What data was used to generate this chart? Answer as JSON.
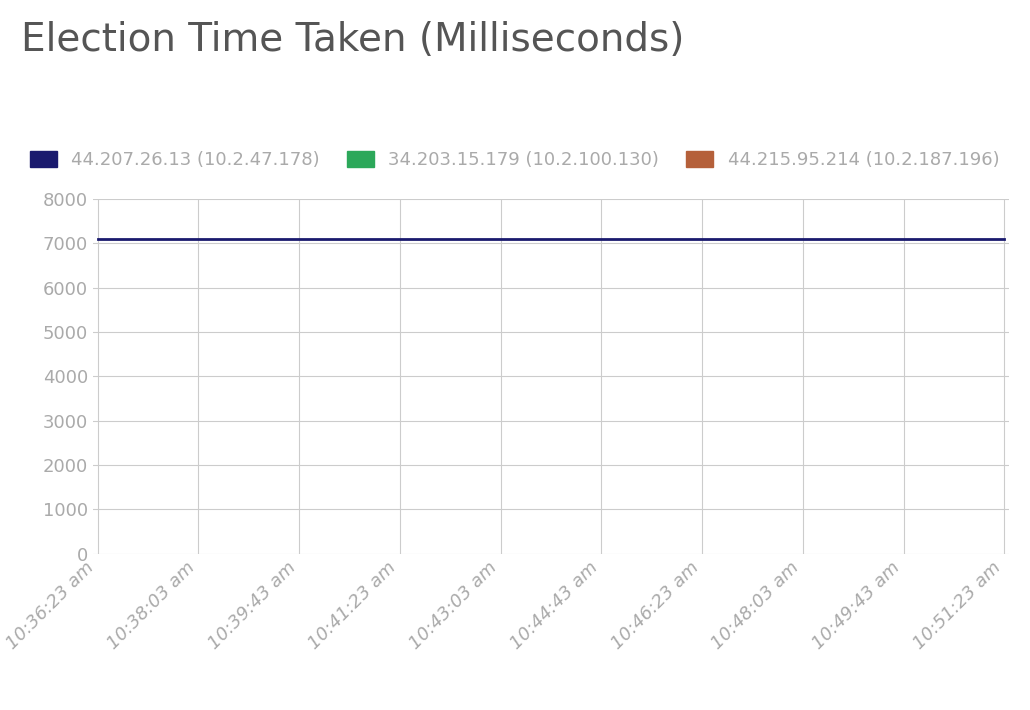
{
  "title": "Election Time Taken (Milliseconds)",
  "title_fontsize": 28,
  "title_color": "#555555",
  "background_color": "#ffffff",
  "plot_bg_color": "#ffffff",
  "grid_color": "#cccccc",
  "series": [
    {
      "label": "44.207.26.13 (10.2.47.178)",
      "color": "#1a1a6e",
      "value": 7100,
      "linewidth": 2.0
    },
    {
      "label": "34.203.15.179 (10.2.100.130)",
      "color": "#2ca85a",
      "value": null,
      "linewidth": 2.0
    },
    {
      "label": "44.215.95.214 (10.2.187.196)",
      "color": "#b5603a",
      "value": null,
      "linewidth": 2.0
    }
  ],
  "x_ticks": [
    "10:36:23 am",
    "10:38:03 am",
    "10:39:43 am",
    "10:41:23 am",
    "10:43:03 am",
    "10:44:43 am",
    "10:46:23 am",
    "10:48:03 am",
    "10:49:43 am",
    "10:51:23 am"
  ],
  "ylim": [
    0,
    8000
  ],
  "yticks": [
    0,
    1000,
    2000,
    3000,
    4000,
    5000,
    6000,
    7000,
    8000
  ],
  "tick_color": "#aaaaaa",
  "tick_fontsize": 13,
  "legend_fontsize": 13
}
